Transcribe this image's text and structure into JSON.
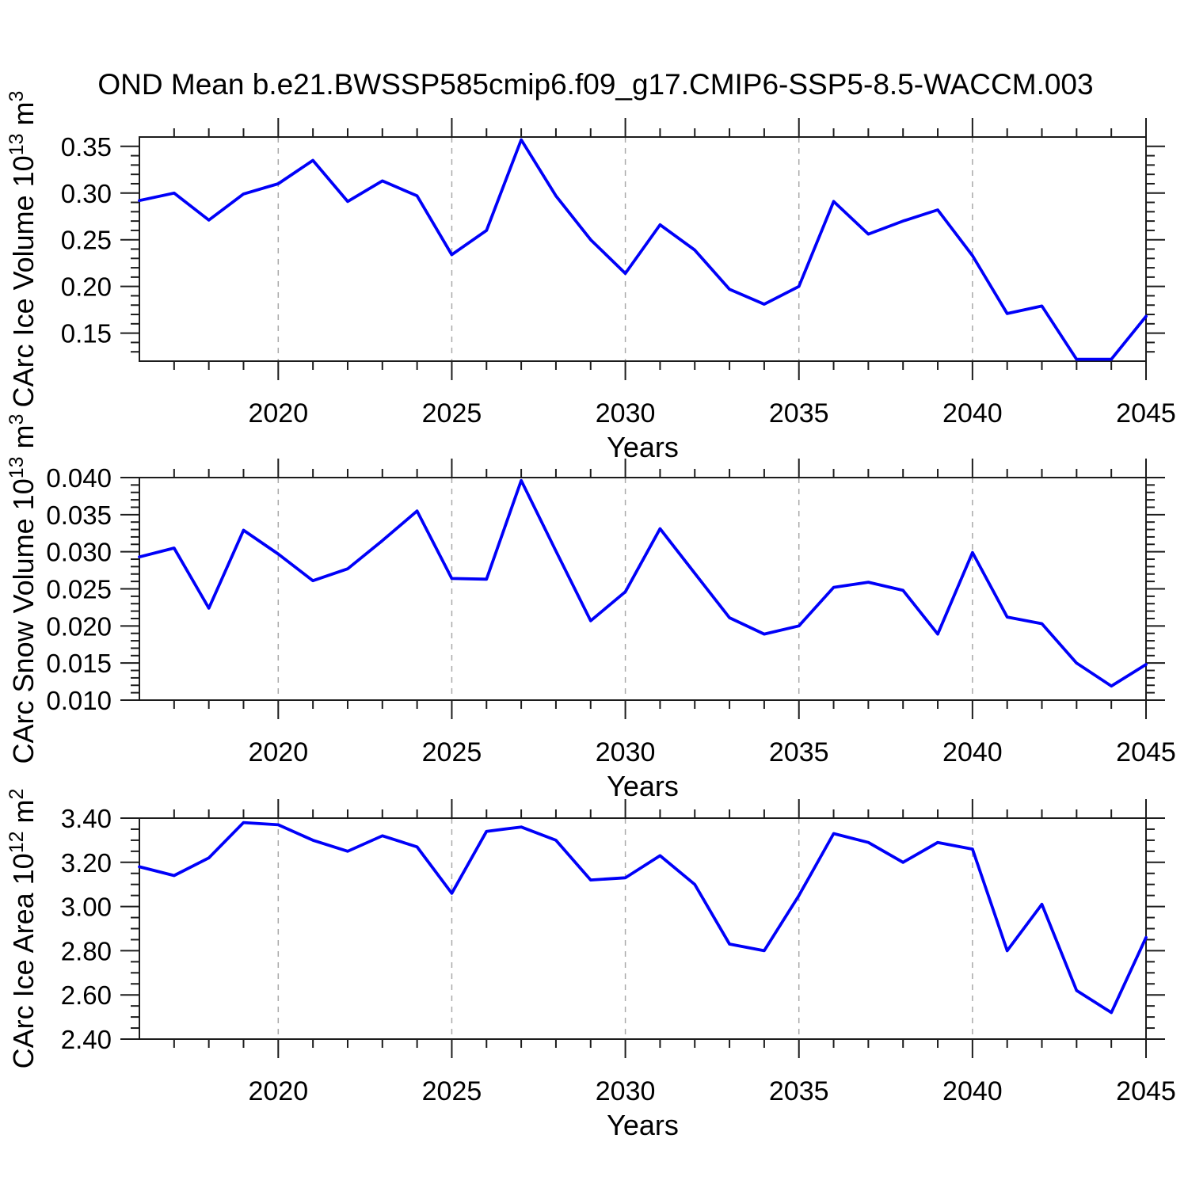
{
  "title": "OND Mean b.e21.BWSSP585cmip6.f09_g17.CMIP6-SSP5-8.5-WACCM.003",
  "line_color": "#0000f8",
  "grid_color": "#a9a9a9",
  "frame_color": "#1c1c1c",
  "years": [
    2016,
    2017,
    2018,
    2019,
    2020,
    2021,
    2022,
    2023,
    2024,
    2025,
    2026,
    2027,
    2028,
    2029,
    2030,
    2031,
    2032,
    2033,
    2034,
    2035,
    2036,
    2037,
    2038,
    2039,
    2040,
    2041,
    2042,
    2043,
    2044,
    2045
  ],
  "chart_data": [
    {
      "id": "ice-volume",
      "type": "line",
      "title": "",
      "xlabel": "Years",
      "ylabel": "CArc Ice Volume 10^13 m^3",
      "ylabel_parts": {
        "base": "CArc Ice Volume 10",
        "exponent": "13",
        "unit": " m",
        "unit_exponent": "3"
      },
      "xlim": [
        2016,
        2045
      ],
      "ylim": [
        0.12,
        0.36
      ],
      "xticks": [
        {
          "v": 2020,
          "label": "2020"
        },
        {
          "v": 2025,
          "label": "2025"
        },
        {
          "v": 2030,
          "label": "2030"
        },
        {
          "v": 2035,
          "label": "2035"
        },
        {
          "v": 2040,
          "label": "2040"
        },
        {
          "v": 2045,
          "label": "2045"
        }
      ],
      "yticks": [
        {
          "v": 0.35,
          "label": "0.35"
        },
        {
          "v": 0.3,
          "label": "0.30"
        },
        {
          "v": 0.25,
          "label": "0.25"
        },
        {
          "v": 0.2,
          "label": "0.20"
        },
        {
          "v": 0.15,
          "label": "0.15"
        }
      ],
      "yminor_step": 0.01,
      "gridline_years": [
        2020,
        2025,
        2030,
        2035,
        2040
      ],
      "legend": "none",
      "series": [
        {
          "name": "CArc Ice Volume",
          "values": [
            0.292,
            0.3,
            0.271,
            0.299,
            0.31,
            0.335,
            0.291,
            0.313,
            0.297,
            0.234,
            0.26,
            0.357,
            0.297,
            0.25,
            0.214,
            0.266,
            0.239,
            0.197,
            0.181,
            0.2,
            0.291,
            0.256,
            0.27,
            0.282,
            0.233,
            0.171,
            0.179,
            0.122,
            0.122,
            0.168
          ]
        }
      ]
    },
    {
      "id": "snow-volume",
      "type": "line",
      "title": "",
      "xlabel": "Years",
      "ylabel": "CArc Snow Volume 10^13 m^3",
      "ylabel_parts": {
        "base": "CArc Snow Volume 10",
        "exponent": "13",
        "unit": " m",
        "unit_exponent": "3"
      },
      "xlim": [
        2016,
        2045
      ],
      "ylim": [
        0.01,
        0.04
      ],
      "xticks": [
        {
          "v": 2020,
          "label": "2020"
        },
        {
          "v": 2025,
          "label": "2025"
        },
        {
          "v": 2030,
          "label": "2030"
        },
        {
          "v": 2035,
          "label": "2035"
        },
        {
          "v": 2040,
          "label": "2040"
        },
        {
          "v": 2045,
          "label": "2045"
        }
      ],
      "yticks": [
        {
          "v": 0.04,
          "label": "0.040"
        },
        {
          "v": 0.035,
          "label": "0.035"
        },
        {
          "v": 0.03,
          "label": "0.030"
        },
        {
          "v": 0.025,
          "label": "0.025"
        },
        {
          "v": 0.02,
          "label": "0.020"
        },
        {
          "v": 0.015,
          "label": "0.015"
        },
        {
          "v": 0.01,
          "label": "0.010"
        }
      ],
      "yminor_step": 0.001,
      "gridline_years": [
        2020,
        2025,
        2030,
        2035,
        2040
      ],
      "legend": "none",
      "series": [
        {
          "name": "CArc Snow Volume",
          "values": [
            0.0293,
            0.0305,
            0.0224,
            0.0329,
            0.0297,
            0.0261,
            0.0277,
            0.0315,
            0.0355,
            0.0264,
            0.0263,
            0.0396,
            0.0301,
            0.0207,
            0.0246,
            0.0331,
            0.0271,
            0.0211,
            0.0189,
            0.02,
            0.0252,
            0.0259,
            0.0248,
            0.0189,
            0.0299,
            0.0212,
            0.0203,
            0.015,
            0.0119,
            0.0148
          ]
        }
      ]
    },
    {
      "id": "ice-area",
      "type": "line",
      "title": "",
      "xlabel": "Years",
      "ylabel": "CArc Ice Area 10^12 m^2",
      "ylabel_parts": {
        "base": "CArc Ice Area 10",
        "exponent": "12",
        "unit": " m",
        "unit_exponent": "2"
      },
      "xlim": [
        2016,
        2045
      ],
      "ylim": [
        2.4,
        3.4
      ],
      "xticks": [
        {
          "v": 2020,
          "label": "2020"
        },
        {
          "v": 2025,
          "label": "2025"
        },
        {
          "v": 2030,
          "label": "2030"
        },
        {
          "v": 2035,
          "label": "2035"
        },
        {
          "v": 2040,
          "label": "2040"
        },
        {
          "v": 2045,
          "label": "2045"
        }
      ],
      "yticks": [
        {
          "v": 3.4,
          "label": "3.40"
        },
        {
          "v": 3.2,
          "label": "3.20"
        },
        {
          "v": 3.0,
          "label": "3.00"
        },
        {
          "v": 2.8,
          "label": "2.80"
        },
        {
          "v": 2.6,
          "label": "2.60"
        },
        {
          "v": 2.4,
          "label": "2.40"
        }
      ],
      "yminor_step": 0.05,
      "gridline_years": [
        2020,
        2025,
        2030,
        2035,
        2040
      ],
      "legend": "none",
      "series": [
        {
          "name": "CArc Ice Area",
          "values": [
            3.18,
            3.14,
            3.22,
            3.38,
            3.37,
            3.3,
            3.25,
            3.32,
            3.27,
            3.06,
            3.34,
            3.36,
            3.3,
            3.12,
            3.13,
            3.23,
            3.1,
            2.83,
            2.8,
            3.05,
            3.33,
            3.29,
            3.2,
            3.29,
            3.26,
            2.8,
            3.01,
            2.62,
            2.52,
            2.86
          ]
        }
      ]
    }
  ]
}
